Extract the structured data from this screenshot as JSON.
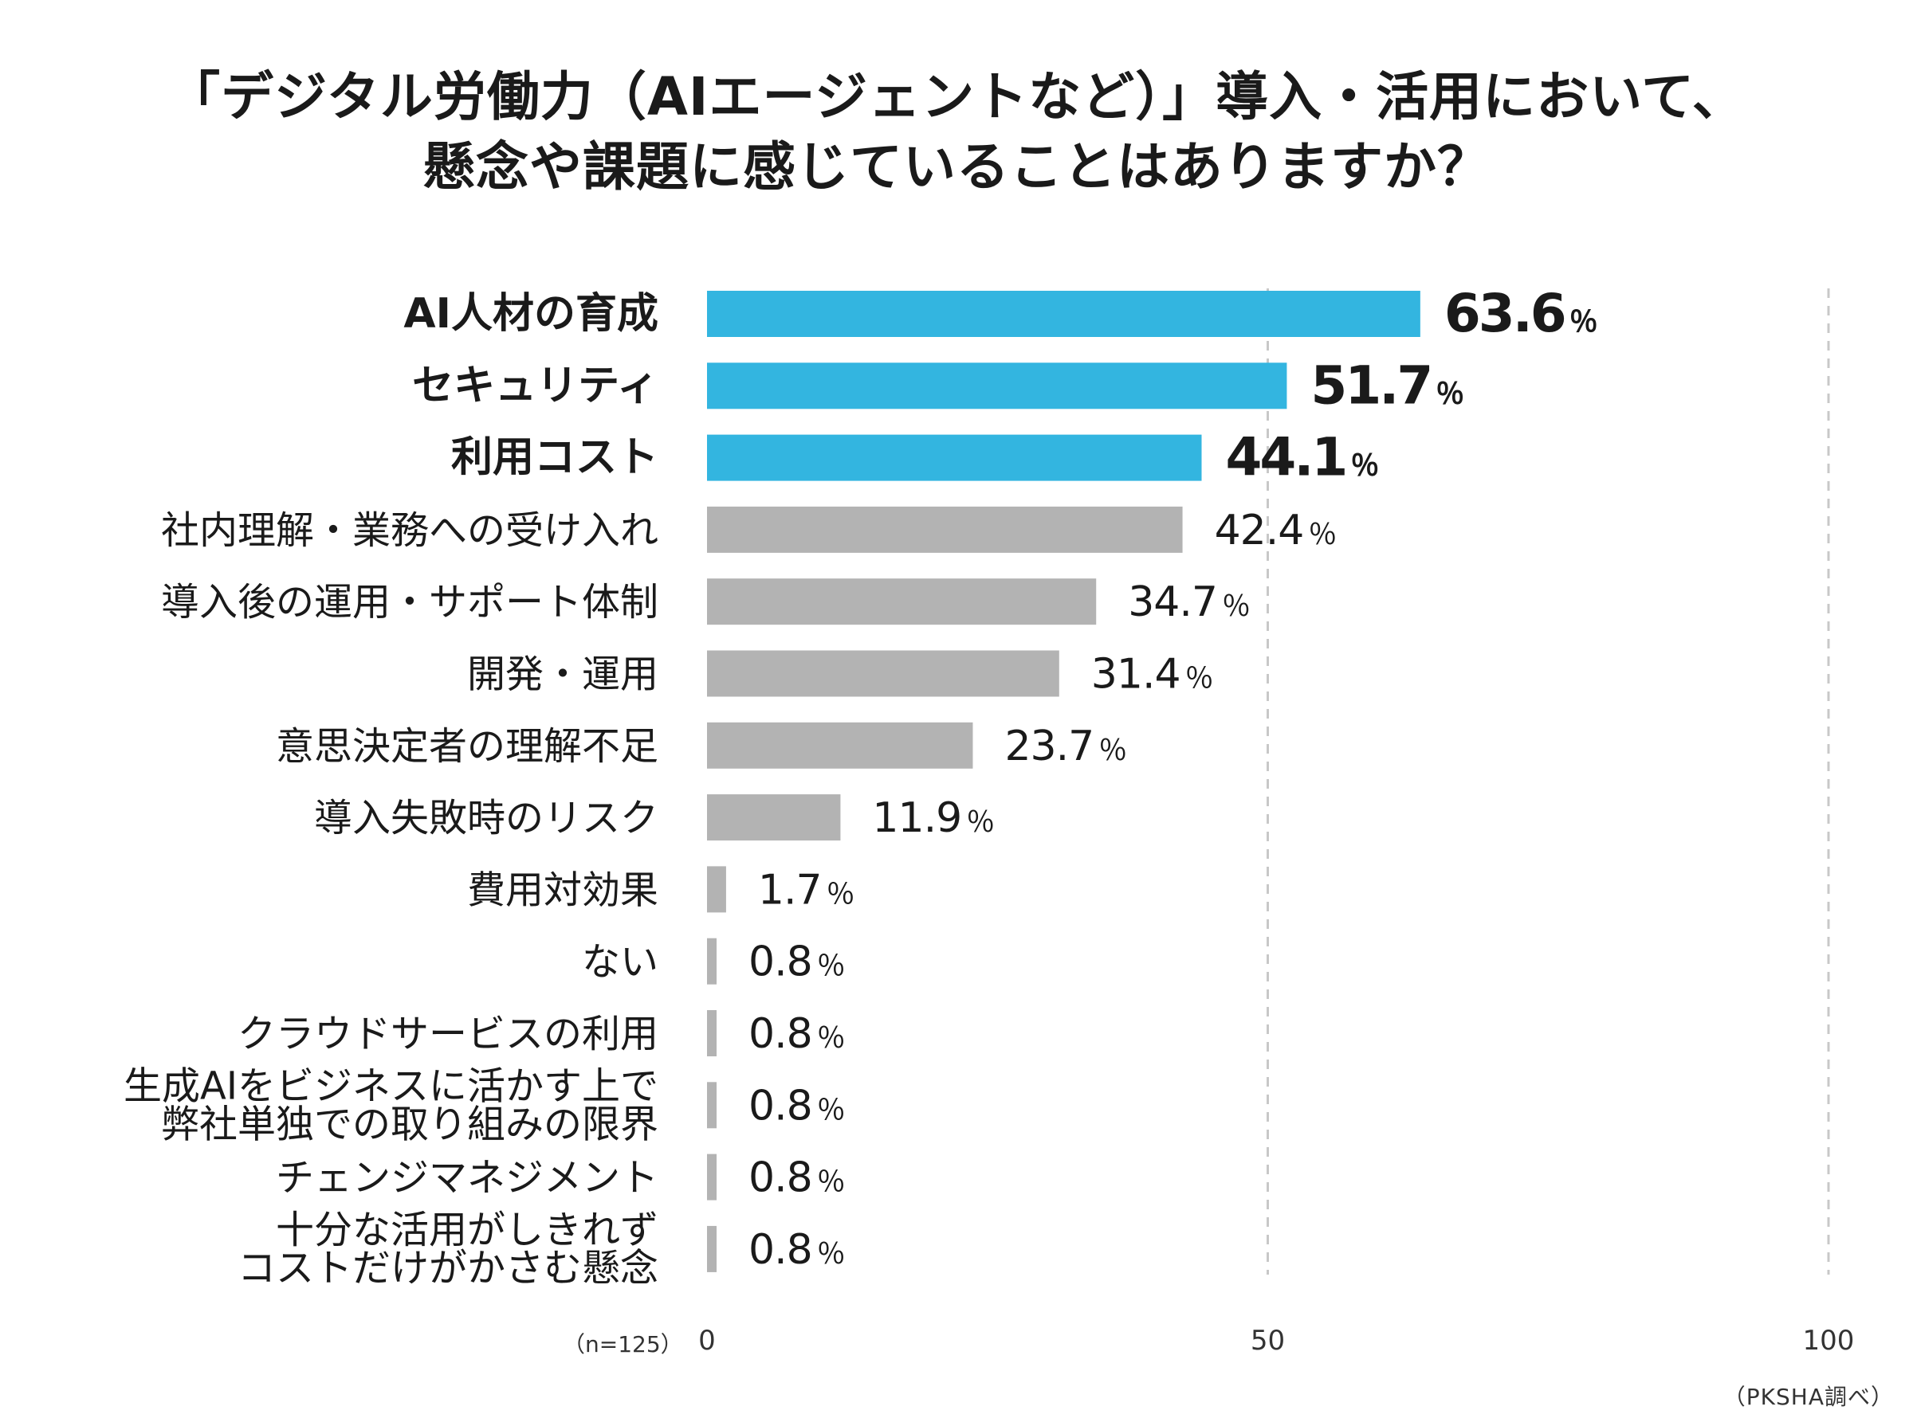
{
  "title_lines": [
    "「デジタル労働力（AIエージェントなど）」導入・活用において、",
    "懸念や課題に感じていることはありますか？"
  ],
  "sample_note": "（n=125）",
  "source_note": "（PKSHA調べ）",
  "colors": {
    "highlight": "#33b5e0",
    "normal": "#b3b3b3",
    "grid": "#c8c8c8"
  },
  "chart_data": {
    "type": "bar",
    "orientation": "horizontal",
    "title": "「デジタル労働力（AIエージェントなど）」導入・活用において、懸念や課題に感じていることはありますか？",
    "categories": [
      [
        "AI人材の育成"
      ],
      [
        "セキュリティ"
      ],
      [
        "利用コスト"
      ],
      [
        "社内理解・業務への受け入れ"
      ],
      [
        "導入後の運用・サポート体制"
      ],
      [
        "開発・運用"
      ],
      [
        "意思決定者の理解不足"
      ],
      [
        "導入失敗時のリスク"
      ],
      [
        "費用対効果"
      ],
      [
        "ない"
      ],
      [
        "クラウドサービスの利用"
      ],
      [
        "生成AIをビジネスに活かす上で",
        "弊社単独での取り組みの限界"
      ],
      [
        "チェンジマネジメント"
      ],
      [
        "十分な活用がしきれず",
        "コストだけがかさむ懸念"
      ]
    ],
    "values": [
      63.6,
      51.7,
      44.1,
      42.4,
      34.7,
      31.4,
      23.7,
      11.9,
      1.7,
      0.8,
      0.8,
      0.8,
      0.8,
      0.8
    ],
    "value_labels": [
      "63.6",
      "51.7",
      "44.1",
      "42.4",
      "34.7",
      "31.4",
      "23.7",
      "11.9",
      "1.7",
      "0.8",
      "0.8",
      "0.8",
      "0.8",
      "0.8"
    ],
    "value_suffix": "％",
    "highlighted_count": 3,
    "xlim": [
      0,
      100
    ],
    "xticks": [
      0,
      50,
      100
    ],
    "xtick_labels": [
      "0",
      "50",
      "100"
    ],
    "gridlines": [
      50,
      100
    ],
    "grid_style": "dashed"
  }
}
